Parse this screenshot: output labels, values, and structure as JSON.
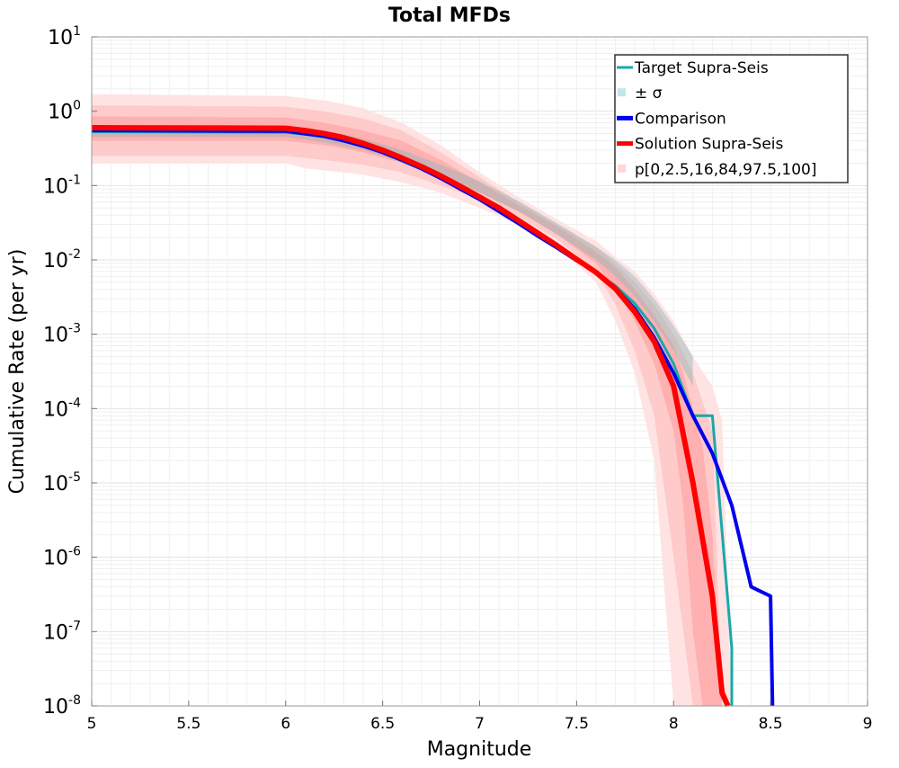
{
  "chart_data": {
    "type": "line",
    "title": "Total MFDs",
    "xlabel": "Magnitude",
    "ylabel": "Cumulative Rate (per yr)",
    "xlim": [
      5,
      9
    ],
    "ylim": [
      1e-08,
      10
    ],
    "yscale": "log",
    "grid": true,
    "legend_position": "top-right",
    "x_ticks": [
      "5",
      "5.5",
      "6",
      "6.5",
      "7",
      "7.5",
      "8",
      "8.5",
      "9"
    ],
    "y_ticks": [
      {
        "base": "10",
        "exp": "-8",
        "value": 1e-08
      },
      {
        "base": "10",
        "exp": "-7",
        "value": 1e-07
      },
      {
        "base": "10",
        "exp": "-6",
        "value": 1e-06
      },
      {
        "base": "10",
        "exp": "-5",
        "value": 1e-05
      },
      {
        "base": "10",
        "exp": "-4",
        "value": 0.0001
      },
      {
        "base": "10",
        "exp": "-3",
        "value": 0.001
      },
      {
        "base": "10",
        "exp": "-2",
        "value": 0.01
      },
      {
        "base": "10",
        "exp": "-1",
        "value": 0.1
      },
      {
        "base": "10",
        "exp": "0",
        "value": 1
      },
      {
        "base": "10",
        "exp": "1",
        "value": 10
      }
    ],
    "legend": [
      {
        "label": "Target Supra-Seis",
        "kind": "line",
        "color": "#1aa8a8"
      },
      {
        "label": "± σ",
        "kind": "patch",
        "color": "#bfe6ea"
      },
      {
        "label": "Comparison",
        "kind": "line",
        "color": "#0000ee"
      },
      {
        "label": "Solution Supra-Seis",
        "kind": "line",
        "color": "#ff0000"
      },
      {
        "label": "p[0,2.5,16,84,97.5,100]",
        "kind": "patch",
        "color": "#ffd6d6"
      }
    ],
    "bands": [
      {
        "name": "p0-p100",
        "color": "#ffe3e3",
        "x": [
          5.0,
          6.0,
          6.1,
          6.2,
          6.4,
          6.6,
          6.8,
          7.0,
          7.2,
          7.4,
          7.6,
          7.7,
          7.8,
          7.9,
          8.0,
          8.1,
          8.2,
          8.25,
          8.3
        ],
        "lower": [
          0.2,
          0.2,
          0.17,
          0.16,
          0.14,
          0.11,
          0.08,
          0.05,
          0.03,
          0.015,
          0.005,
          0.0015,
          0.0003,
          2e-05,
          1e-08,
          1e-08,
          1e-08,
          1e-08,
          1e-08
        ],
        "upper": [
          1.7,
          1.6,
          1.5,
          1.4,
          1.1,
          0.7,
          0.35,
          0.15,
          0.07,
          0.035,
          0.018,
          0.011,
          0.007,
          0.0035,
          0.0015,
          0.0005,
          0.0002,
          7e-05,
          1e-08
        ]
      },
      {
        "name": "p2.5-p97.5",
        "color": "#ffcaca",
        "x": [
          5.0,
          6.0,
          6.2,
          6.4,
          6.6,
          6.8,
          7.0,
          7.2,
          7.4,
          7.6,
          7.7,
          7.8,
          7.9,
          8.0,
          8.1,
          8.2,
          8.25
        ],
        "lower": [
          0.25,
          0.25,
          0.22,
          0.19,
          0.15,
          0.1,
          0.065,
          0.038,
          0.019,
          0.007,
          0.0025,
          0.0006,
          8e-05,
          1e-06,
          1e-08,
          1e-08,
          1e-08
        ],
        "upper": [
          1.2,
          1.15,
          1.0,
          0.8,
          0.55,
          0.28,
          0.13,
          0.06,
          0.03,
          0.015,
          0.009,
          0.005,
          0.0025,
          0.001,
          0.0003,
          5e-05,
          1e-08
        ]
      },
      {
        "name": "p16-p84",
        "color": "#ffb0b0",
        "x": [
          5.0,
          6.0,
          6.2,
          6.4,
          6.6,
          6.8,
          7.0,
          7.2,
          7.4,
          7.6,
          7.7,
          7.8,
          7.9,
          8.0,
          8.05,
          8.1,
          8.15,
          8.2,
          8.25
        ],
        "lower": [
          0.4,
          0.4,
          0.35,
          0.28,
          0.2,
          0.13,
          0.08,
          0.045,
          0.022,
          0.009,
          0.004,
          0.0015,
          0.0004,
          5e-05,
          5e-06,
          1e-07,
          1e-08,
          1e-08,
          1e-08
        ],
        "upper": [
          0.85,
          0.82,
          0.7,
          0.55,
          0.4,
          0.22,
          0.11,
          0.055,
          0.028,
          0.013,
          0.008,
          0.004,
          0.0018,
          0.0007,
          0.0003,
          0.0001,
          3e-05,
          2e-06,
          1e-08
        ]
      }
    ],
    "target_sigma": {
      "color": "#8fb8b8",
      "x": [
        5.0,
        6.0,
        6.2,
        6.4,
        6.6,
        6.8,
        7.0,
        7.2,
        7.4,
        7.6,
        7.7,
        7.8,
        7.9,
        8.0,
        8.1
      ],
      "lower": [
        0.45,
        0.45,
        0.38,
        0.3,
        0.21,
        0.13,
        0.08,
        0.045,
        0.022,
        0.01,
        0.006,
        0.0032,
        0.0015,
        0.0006,
        0.0002
      ],
      "upper": [
        0.65,
        0.65,
        0.55,
        0.43,
        0.3,
        0.19,
        0.115,
        0.062,
        0.031,
        0.015,
        0.01,
        0.006,
        0.003,
        0.0013,
        0.0005
      ]
    },
    "series": [
      {
        "name": "Target Supra-Seis",
        "color": "#1aa8a8",
        "width": 3,
        "x": [
          5.0,
          6.0,
          6.1,
          6.2,
          6.3,
          6.4,
          6.5,
          6.6,
          6.7,
          6.8,
          6.9,
          7.0,
          7.1,
          7.2,
          7.3,
          7.4,
          7.5,
          7.6,
          7.7,
          7.8,
          7.9,
          8.0,
          8.1,
          8.2,
          8.3,
          8.3
        ],
        "y": [
          0.53,
          0.52,
          0.49,
          0.45,
          0.4,
          0.34,
          0.275,
          0.215,
          0.165,
          0.125,
          0.09,
          0.065,
          0.045,
          0.031,
          0.021,
          0.0145,
          0.0098,
          0.0068,
          0.0045,
          0.0026,
          0.0012,
          0.0004,
          8e-05,
          8e-05,
          6e-08,
          1e-08
        ]
      },
      {
        "name": "Comparison",
        "color": "#0000ee",
        "width": 4,
        "x": [
          5.0,
          6.0,
          6.1,
          6.2,
          6.3,
          6.4,
          6.5,
          6.6,
          6.7,
          6.8,
          6.9,
          7.0,
          7.1,
          7.2,
          7.3,
          7.4,
          7.5,
          7.6,
          7.7,
          7.8,
          7.9,
          8.0,
          8.1,
          8.2,
          8.3,
          8.4,
          8.5,
          8.51
        ],
        "y": [
          0.55,
          0.54,
          0.5,
          0.46,
          0.4,
          0.34,
          0.28,
          0.22,
          0.17,
          0.125,
          0.09,
          0.065,
          0.045,
          0.031,
          0.021,
          0.0145,
          0.0098,
          0.0068,
          0.0042,
          0.0022,
          0.0009,
          0.0003,
          8e-05,
          2.5e-05,
          5e-06,
          4e-07,
          3e-07,
          1e-08
        ]
      },
      {
        "name": "Solution Supra-Seis",
        "color": "#ff0000",
        "width": 6,
        "x": [
          5.0,
          6.0,
          6.1,
          6.2,
          6.3,
          6.4,
          6.5,
          6.6,
          6.7,
          6.8,
          6.9,
          7.0,
          7.1,
          7.2,
          7.3,
          7.4,
          7.5,
          7.6,
          7.7,
          7.8,
          7.9,
          8.0,
          8.1,
          8.2,
          8.25,
          8.28
        ],
        "y": [
          0.6,
          0.59,
          0.55,
          0.5,
          0.44,
          0.37,
          0.3,
          0.235,
          0.18,
          0.135,
          0.098,
          0.07,
          0.05,
          0.034,
          0.023,
          0.0155,
          0.0102,
          0.0068,
          0.0041,
          0.002,
          0.0008,
          0.0002,
          1e-05,
          3e-07,
          1.5e-08,
          1e-08
        ]
      }
    ]
  }
}
